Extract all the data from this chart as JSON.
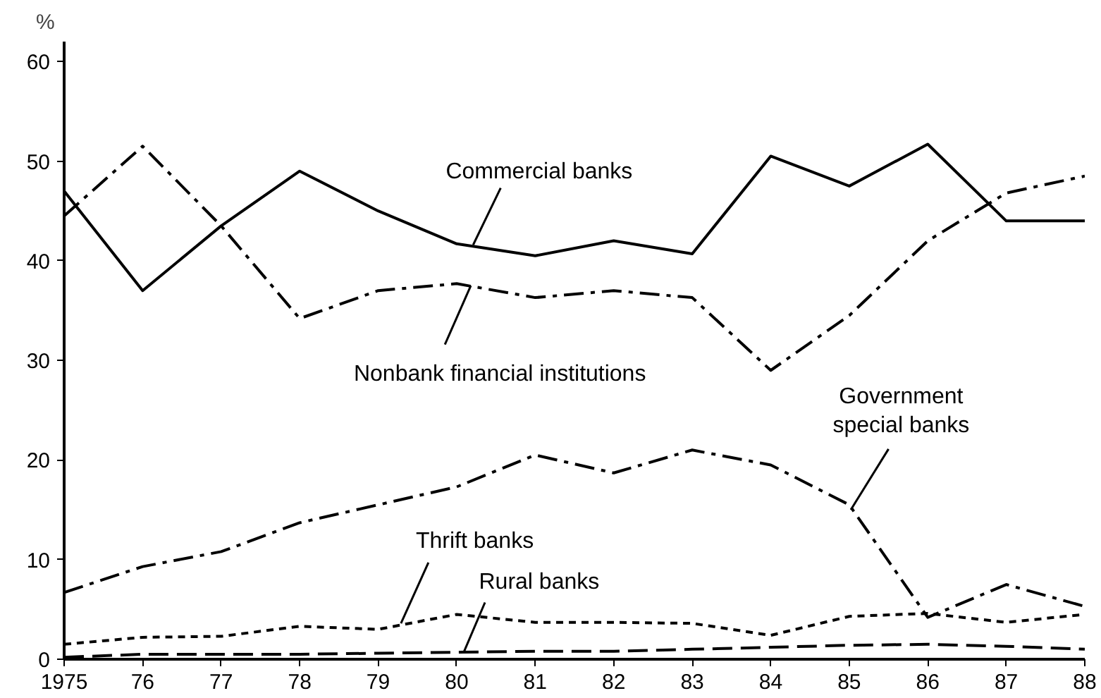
{
  "chart_data": {
    "type": "line",
    "ylabel": "%",
    "x": [
      1975,
      1976,
      1977,
      1978,
      1979,
      1980,
      1981,
      1982,
      1983,
      1984,
      1985,
      1986,
      1987,
      1988
    ],
    "series": [
      {
        "name": "Commercial banks",
        "color": "#000000",
        "line_style": "solid",
        "values": [
          47,
          37,
          43.5,
          49,
          45,
          41.7,
          40.5,
          42,
          40.7,
          50.5,
          47.5,
          51.7,
          44,
          44
        ]
      },
      {
        "name": "Nonbank financial institutions",
        "color": "#000000",
        "line_style": "dashdot",
        "values": [
          44.5,
          51.5,
          43.5,
          34.2,
          37,
          37.7,
          36.3,
          37,
          36.3,
          29,
          34.5,
          42,
          46.8,
          48.5
        ]
      },
      {
        "name": "Government\nspecial banks",
        "color": "#000000",
        "line_style": "dashdot",
        "values": [
          6.7,
          9.3,
          10.8,
          13.7,
          15.5,
          17.3,
          20.5,
          18.7,
          21,
          19.5,
          15.5,
          4.2,
          7.5,
          5.3
        ]
      },
      {
        "name": "Thrift banks",
        "color": "#000000",
        "line_style": "dashed",
        "values": [
          1.5,
          2.2,
          2.3,
          3.3,
          3,
          4.5,
          3.7,
          3.7,
          3.6,
          2.4,
          4.3,
          4.6,
          3.7,
          4.5
        ]
      },
      {
        "name": "Rural banks",
        "color": "#000000",
        "line_style": "longdash",
        "values": [
          0.2,
          0.5,
          0.5,
          0.5,
          0.6,
          0.7,
          0.8,
          0.8,
          1.0,
          1.2,
          1.4,
          1.5,
          1.3,
          1.0
        ]
      }
    ],
    "xlim": [
      1975,
      1988
    ],
    "xticks": [
      {
        "value": 1975,
        "label": "1975"
      },
      {
        "value": 1976,
        "label": "76"
      },
      {
        "value": 1977,
        "label": "77"
      },
      {
        "value": 1978,
        "label": "78"
      },
      {
        "value": 1979,
        "label": "79"
      },
      {
        "value": 1980,
        "label": "80"
      },
      {
        "value": 1981,
        "label": "81"
      },
      {
        "value": 1982,
        "label": "82"
      },
      {
        "value": 1983,
        "label": "83"
      },
      {
        "value": 1984,
        "label": "84"
      },
      {
        "value": 1985,
        "label": "85"
      },
      {
        "value": 1986,
        "label": "86"
      },
      {
        "value": 1987,
        "label": "87"
      },
      {
        "value": 1988,
        "label": "88"
      }
    ],
    "ylim": [
      0,
      62
    ],
    "yticks": [
      0,
      10,
      20,
      30,
      40,
      50,
      60
    ],
    "grid": false,
    "marker": "none"
  }
}
